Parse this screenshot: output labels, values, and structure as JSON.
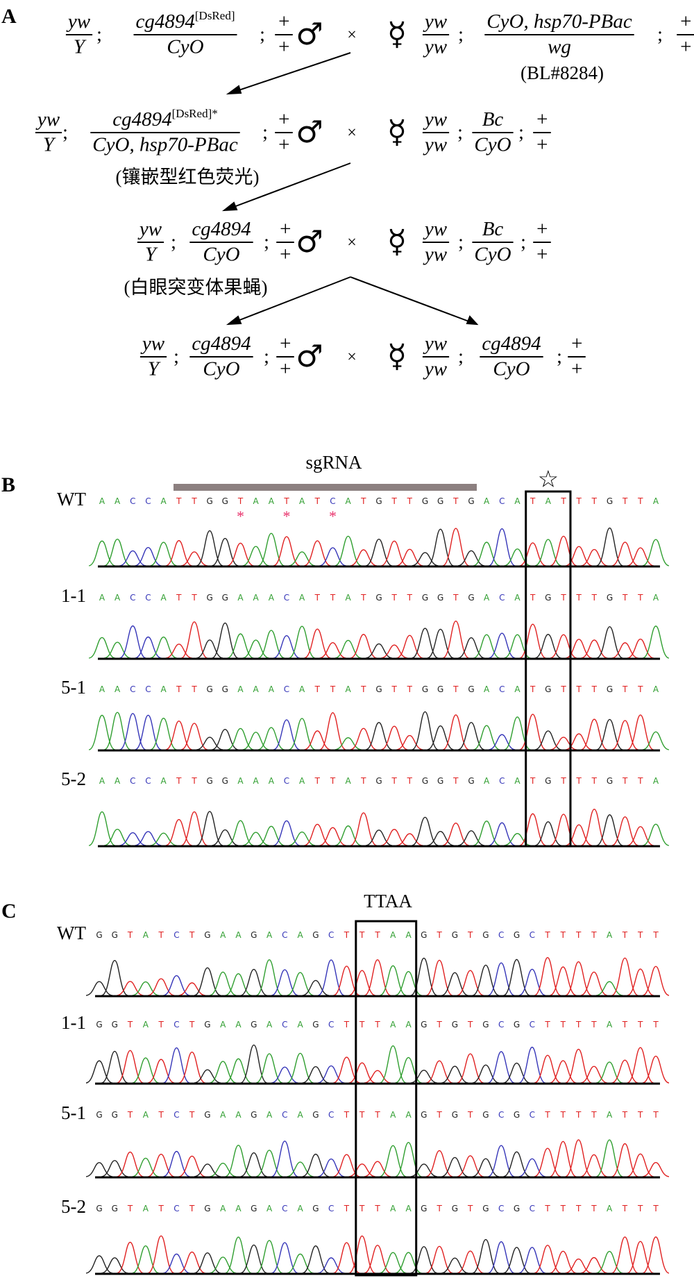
{
  "panel_a": {
    "label": "A",
    "male": "♂",
    "female": "☿",
    "cross": "×",
    "sep": ";",
    "rows": [
      {
        "male": [
          {
            "num": "yw",
            "den": "Y"
          },
          {
            "num": "cg4894",
            "sup": "[DsRed]",
            "den": "CyO"
          },
          {
            "num": "+",
            "den": "+"
          }
        ],
        "female": [
          {
            "num": "yw",
            "den": "yw"
          },
          {
            "num": "CyO, hsp70-PBac",
            "den": "wg"
          },
          {
            "num": "+",
            "den": "+"
          }
        ],
        "note": "(BL#8284)"
      },
      {
        "male": [
          {
            "num": "yw",
            "den": "Y"
          },
          {
            "num": "cg4894",
            "sup": "[DsRed]*",
            "den": "CyO, hsp70-PBac"
          },
          {
            "num": "+",
            "den": "+"
          }
        ],
        "female": [
          {
            "num": "yw",
            "den": "yw"
          },
          {
            "num": "Bc",
            "den": "CyO"
          },
          {
            "num": "+",
            "den": "+"
          }
        ],
        "note": "(镶嵌型红色荧光)"
      },
      {
        "male": [
          {
            "num": "yw",
            "den": "Y"
          },
          {
            "num": "cg4894",
            "den": "CyO"
          },
          {
            "num": "+",
            "den": "+"
          }
        ],
        "female": [
          {
            "num": "yw",
            "den": "yw"
          },
          {
            "num": "Bc",
            "den": "CyO"
          },
          {
            "num": "+",
            "den": "+"
          }
        ],
        "note": "(白眼突变体果蝇)"
      },
      {
        "male": [
          {
            "num": "yw",
            "den": "Y"
          },
          {
            "num": "cg4894",
            "den": "CyO"
          },
          {
            "num": "+",
            "den": "+"
          }
        ],
        "female": [
          {
            "num": "yw",
            "den": "yw"
          },
          {
            "num": "cg4894",
            "den": "CyO"
          },
          {
            "num": "+",
            "den": "+"
          }
        ]
      }
    ]
  },
  "panel_b": {
    "label": "B",
    "target": "sgRNA",
    "star": "☆",
    "marks": [
      null,
      null,
      null,
      null,
      null,
      null,
      null,
      null,
      null,
      "*",
      null,
      null,
      "*",
      null,
      null,
      "*",
      null,
      null,
      null,
      null,
      null,
      null,
      null,
      null,
      null,
      null,
      null,
      null,
      null,
      null,
      null,
      null,
      null,
      null,
      null,
      null,
      null
    ],
    "rows": [
      {
        "name": "WT",
        "bases": [
          "A",
          "A",
          "C",
          "C",
          "A",
          "T",
          "T",
          "G",
          "G",
          "T",
          "A",
          "A",
          "T",
          "A",
          "T",
          "C",
          "A",
          "T",
          "G",
          "T",
          "T",
          "G",
          "G",
          "T",
          "G",
          "A",
          "C",
          "A",
          "T",
          "A",
          "T",
          "T",
          "T",
          "G",
          "T",
          "T",
          "A"
        ]
      },
      {
        "name": "1-1",
        "bases": [
          "A",
          "A",
          "C",
          "C",
          "A",
          "T",
          "T",
          "G",
          "G",
          "A",
          "A",
          "A",
          "C",
          "A",
          "T",
          "T",
          "A",
          "T",
          "G",
          "T",
          "T",
          "G",
          "G",
          "T",
          "G",
          "A",
          "C",
          "A",
          "T",
          "G",
          "T",
          "T",
          "T",
          "G",
          "T",
          "T",
          "A"
        ]
      },
      {
        "name": "5-1",
        "bases": [
          "A",
          "A",
          "C",
          "C",
          "A",
          "T",
          "T",
          "G",
          "G",
          "A",
          "A",
          "A",
          "C",
          "A",
          "T",
          "T",
          "A",
          "T",
          "G",
          "T",
          "T",
          "G",
          "G",
          "T",
          "G",
          "A",
          "C",
          "A",
          "T",
          "G",
          "T",
          "T",
          "T",
          "G",
          "T",
          "T",
          "A"
        ]
      },
      {
        "name": "5-2",
        "bases": [
          "A",
          "A",
          "C",
          "C",
          "A",
          "T",
          "T",
          "G",
          "G",
          "A",
          "A",
          "A",
          "C",
          "A",
          "T",
          "T",
          "A",
          "T",
          "G",
          "T",
          "T",
          "G",
          "G",
          "T",
          "G",
          "A",
          "C",
          "A",
          "T",
          "G",
          "T",
          "T",
          "T",
          "G",
          "T",
          "T",
          "A"
        ]
      }
    ]
  },
  "panel_c": {
    "label": "C",
    "site": "TTAA",
    "rows": [
      {
        "name": "WT",
        "bases": [
          "G",
          "G",
          "T",
          "A",
          "T",
          "C",
          "T",
          "G",
          "A",
          "A",
          "G",
          "A",
          "C",
          "A",
          "G",
          "C",
          "T",
          "T",
          "T",
          "A",
          "A",
          "G",
          "T",
          "G",
          "T",
          "G",
          "C",
          "G",
          "C",
          "T",
          "T",
          "T",
          "T",
          "A",
          "T",
          "T",
          "T"
        ]
      },
      {
        "name": "1-1",
        "bases": [
          "G",
          "G",
          "T",
          "A",
          "T",
          "C",
          "T",
          "G",
          "A",
          "A",
          "G",
          "A",
          "C",
          "A",
          "G",
          "C",
          "T",
          "T",
          "T",
          "A",
          "A",
          "G",
          "T",
          "G",
          "T",
          "G",
          "C",
          "G",
          "C",
          "T",
          "T",
          "T",
          "T",
          "A",
          "T",
          "T",
          "T"
        ]
      },
      {
        "name": "5-1",
        "bases": [
          "G",
          "G",
          "T",
          "A",
          "T",
          "C",
          "T",
          "G",
          "A",
          "A",
          "G",
          "A",
          "C",
          "A",
          "G",
          "C",
          "T",
          "T",
          "T",
          "A",
          "A",
          "G",
          "T",
          "G",
          "T",
          "G",
          "C",
          "G",
          "C",
          "T",
          "T",
          "T",
          "T",
          "A",
          "T",
          "T",
          "T"
        ]
      },
      {
        "name": "5-2",
        "bases": [
          "G",
          "G",
          "T",
          "A",
          "T",
          "C",
          "T",
          "G",
          "A",
          "A",
          "G",
          "A",
          "C",
          "A",
          "G",
          "C",
          "T",
          "T",
          "T",
          "A",
          "A",
          "G",
          "T",
          "G",
          "T",
          "G",
          "C",
          "G",
          "C",
          "T",
          "T",
          "T",
          "T",
          "A",
          "T",
          "T",
          "T"
        ]
      }
    ]
  }
}
